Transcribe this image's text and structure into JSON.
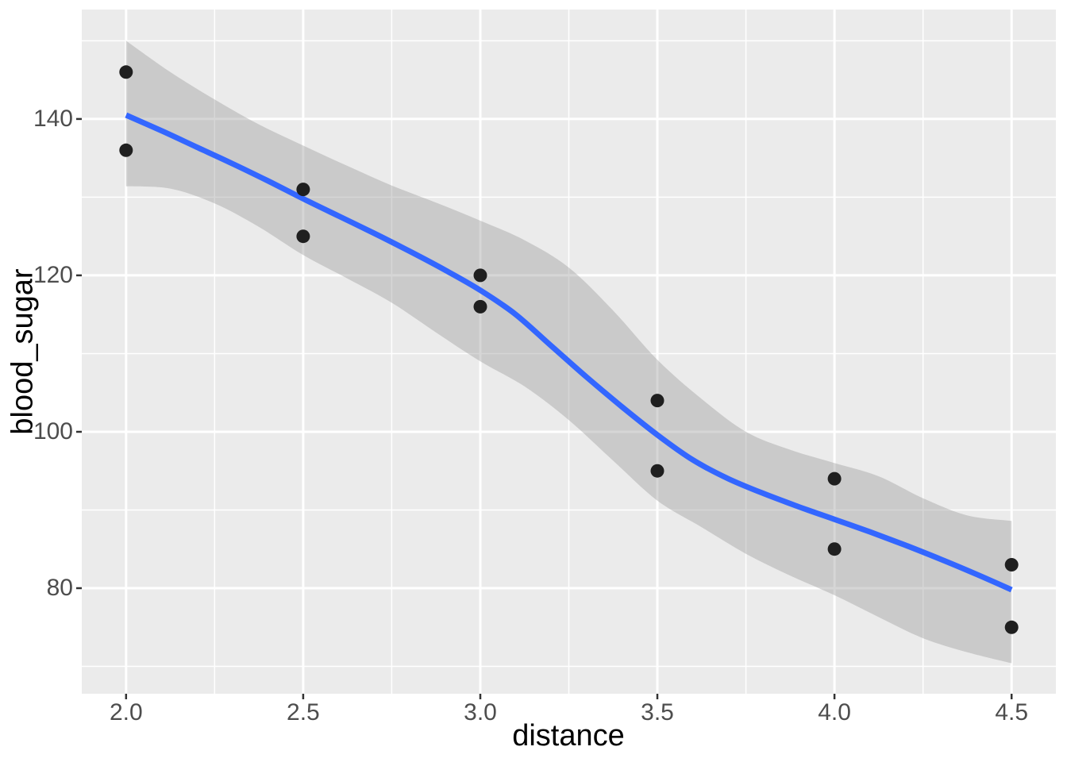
{
  "figure": {
    "background_color": "#FFFFFF",
    "panel_background_color": "#EBEBEB",
    "grid_color": "#FFFFFF",
    "tick_mark_color": "#333333",
    "tick_label_color": "#4D4D4D",
    "axis_title_color": "#000000",
    "ribbon_color": "#999999",
    "ribbon_opacity": 0.4,
    "smooth_line_color": "#3366FF",
    "point_color": "#1F1F1F"
  },
  "chart_data": {
    "type": "scatter",
    "title": "",
    "xlabel": "distance",
    "ylabel": "blood_sugar",
    "xlim": [
      1.875,
      4.625
    ],
    "ylim": [
      66.5,
      154
    ],
    "grid": true,
    "legend_position": "none",
    "x_ticks": {
      "values": [
        2.0,
        2.5,
        3.0,
        3.5,
        4.0,
        4.5
      ],
      "labels": [
        "2.0",
        "2.5",
        "3.0",
        "3.5",
        "4.0",
        "4.5"
      ]
    },
    "y_ticks": {
      "values": [
        140,
        120,
        100,
        80
      ],
      "labels": [
        "140",
        "120",
        "100",
        "80"
      ]
    },
    "x_minor": [
      2.25,
      2.75,
      3.25,
      3.75,
      4.25
    ],
    "y_minor": [
      150,
      130,
      110,
      90,
      70
    ],
    "points": [
      [
        2.0,
        146
      ],
      [
        2.0,
        136
      ],
      [
        2.5,
        131
      ],
      [
        2.5,
        125
      ],
      [
        3.0,
        120
      ],
      [
        3.0,
        116
      ],
      [
        3.5,
        104
      ],
      [
        3.5,
        95
      ],
      [
        4.0,
        94
      ],
      [
        4.0,
        85
      ],
      [
        4.5,
        83
      ],
      [
        4.5,
        75
      ]
    ],
    "smooth_line": {
      "x": [
        2.0,
        2.1,
        2.2,
        2.3,
        2.4,
        2.5,
        2.6,
        2.7,
        2.8,
        2.9,
        3.0,
        3.1,
        3.2,
        3.3,
        3.4,
        3.5,
        3.6,
        3.7,
        3.8,
        3.9,
        4.0,
        4.1,
        4.2,
        4.3,
        4.4,
        4.5
      ],
      "y": [
        140.5,
        138.5,
        136.4,
        134.3,
        132.1,
        129.8,
        127.6,
        125.4,
        123.1,
        120.7,
        118.1,
        115.0,
        111.0,
        107.0,
        103.2,
        99.6,
        96.4,
        94.0,
        92.1,
        90.4,
        88.8,
        87.2,
        85.5,
        83.7,
        81.8,
        79.8
      ]
    },
    "confidence_band": {
      "x": [
        2.0,
        2.125,
        2.25,
        2.375,
        2.5,
        2.625,
        2.75,
        2.875,
        3.0,
        3.125,
        3.25,
        3.375,
        3.5,
        3.625,
        3.75,
        3.875,
        4.0,
        4.125,
        4.25,
        4.375,
        4.5
      ],
      "upper": [
        150.0,
        146.0,
        142.5,
        139.3,
        136.6,
        134.0,
        131.5,
        129.3,
        127.0,
        124.5,
        121.0,
        115.5,
        109.2,
        104.2,
        100.0,
        97.7,
        96.0,
        94.3,
        91.5,
        89.3,
        88.6
      ],
      "lower": [
        131.4,
        131.1,
        129.2,
        126.2,
        122.6,
        119.6,
        116.5,
        112.7,
        109.0,
        105.8,
        101.5,
        96.3,
        91.2,
        87.8,
        84.4,
        81.6,
        79.1,
        76.3,
        73.6,
        71.8,
        70.4
      ]
    }
  }
}
